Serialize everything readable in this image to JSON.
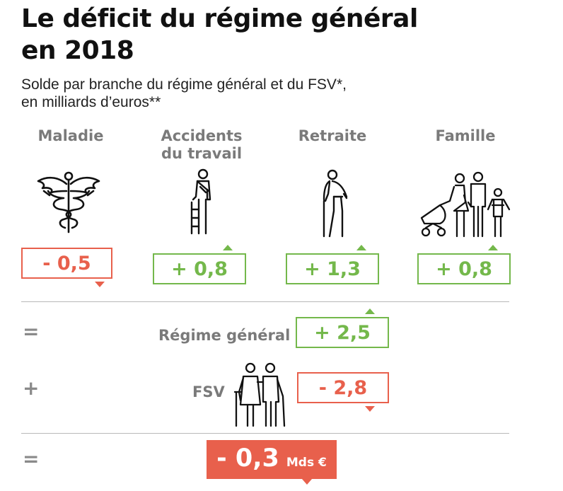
{
  "title_line1": "Le déficit du régime général",
  "title_line2": "en 2018",
  "subtitle_line1": "Solde par branche du régime général et du FSV*,",
  "subtitle_line2": "en milliards d’euros**",
  "colors": {
    "positive": "#74b84b",
    "negative": "#e8604c",
    "label": "#7a7a7a"
  },
  "chart_data": {
    "type": "table",
    "title": "Le déficit du régime général en 2018",
    "subtitle": "Solde par branche du régime général et du FSV*, en milliards d’euros**",
    "branches": [
      {
        "name_line1": "Maladie",
        "name_line2": "",
        "value": -0.5,
        "display": "- 0,5",
        "icon": "caduceus-icon"
      },
      {
        "name_line1": "Accidents",
        "name_line2": "du travail",
        "value": 0.8,
        "display": "+ 0,8",
        "icon": "injured-worker-icon"
      },
      {
        "name_line1": "Retraite",
        "name_line2": "",
        "value": 1.3,
        "display": "+ 1,3",
        "icon": "elderly-man-icon"
      },
      {
        "name_line1": "Famille",
        "name_line2": "",
        "value": 0.8,
        "display": "+ 0,8",
        "icon": "family-icon"
      }
    ],
    "regime_general": {
      "operator": "=",
      "label": "Régime général",
      "value": 2.5,
      "display": "+ 2,5"
    },
    "fsv": {
      "operator": "+",
      "label": "FSV",
      "value": -2.8,
      "display": "- 2,8",
      "icon": "elderly-couple-icon"
    },
    "total": {
      "operator": "=",
      "value": -0.3,
      "display": "- 0,3",
      "unit": "Mds €"
    }
  }
}
